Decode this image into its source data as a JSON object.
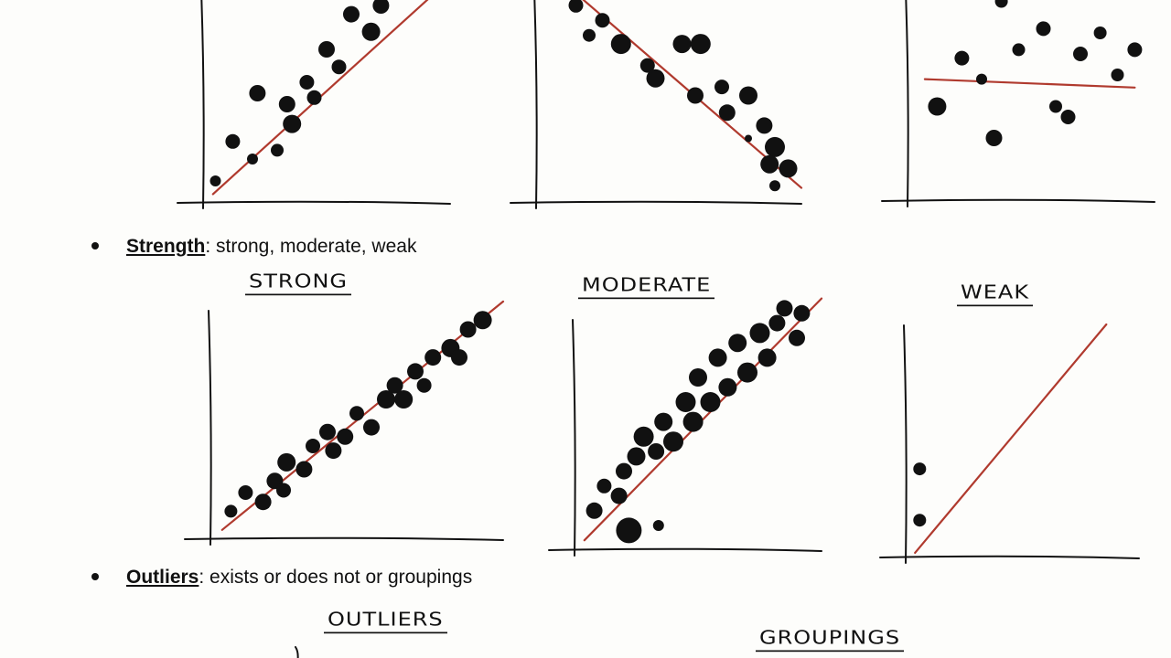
{
  "bullets": {
    "strength": {
      "term": "Strength",
      "rest": ":  strong, moderate, weak"
    },
    "outliers": {
      "term": "Outliers",
      "rest": ":  exists or does not or groupings"
    }
  },
  "titles": {
    "strong": "STRONG",
    "moderate": "MODERATE",
    "weak": "WEAK",
    "outliers": "OUTLIERS",
    "groupings": "GROUPINGS"
  },
  "colors": {
    "ink": "#111111",
    "trend": "#b03a2e",
    "paper": "#fdfdfb"
  },
  "chart_data": [
    {
      "type": "scatter",
      "name": "positive",
      "trend": "positive",
      "points": [
        [
          0.05,
          0.1,
          6
        ],
        [
          0.12,
          0.28,
          8
        ],
        [
          0.2,
          0.2,
          6
        ],
        [
          0.22,
          0.5,
          9
        ],
        [
          0.3,
          0.24,
          7
        ],
        [
          0.34,
          0.45,
          9
        ],
        [
          0.36,
          0.36,
          10
        ],
        [
          0.42,
          0.55,
          8
        ],
        [
          0.45,
          0.48,
          8
        ],
        [
          0.5,
          0.7,
          9
        ],
        [
          0.55,
          0.62,
          8
        ],
        [
          0.6,
          0.86,
          9
        ],
        [
          0.68,
          0.78,
          10
        ],
        [
          0.72,
          0.9,
          9
        ],
        [
          0.78,
          0.96,
          8
        ],
        [
          0.88,
          1.02,
          9
        ]
      ]
    },
    {
      "type": "scatter",
      "name": "negative",
      "trend": "negative",
      "points": [
        [
          0.05,
          1.02,
          8
        ],
        [
          0.15,
          0.92,
          8
        ],
        [
          0.2,
          0.78,
          7
        ],
        [
          0.25,
          0.85,
          8
        ],
        [
          0.32,
          0.74,
          11
        ],
        [
          0.42,
          0.64,
          8
        ],
        [
          0.45,
          0.58,
          10
        ],
        [
          0.55,
          0.74,
          10
        ],
        [
          0.62,
          0.74,
          11
        ],
        [
          0.6,
          0.5,
          9
        ],
        [
          0.72,
          0.42,
          9
        ],
        [
          0.7,
          0.54,
          8
        ],
        [
          0.8,
          0.5,
          10
        ],
        [
          0.86,
          0.36,
          9
        ],
        [
          0.9,
          0.26,
          11
        ],
        [
          0.88,
          0.18,
          10
        ],
        [
          0.95,
          0.16,
          10
        ],
        [
          0.9,
          0.08,
          6
        ],
        [
          0.8,
          0.3,
          4
        ]
      ]
    },
    {
      "type": "scatter",
      "name": "none",
      "trend": "flat",
      "points": [
        [
          0.12,
          0.45,
          10
        ],
        [
          0.22,
          0.68,
          8
        ],
        [
          0.3,
          0.58,
          6
        ],
        [
          0.38,
          0.95,
          7
        ],
        [
          0.45,
          0.72,
          7
        ],
        [
          0.55,
          0.82,
          8
        ],
        [
          0.6,
          0.45,
          7
        ],
        [
          0.65,
          0.4,
          8
        ],
        [
          0.7,
          0.7,
          8
        ],
        [
          0.78,
          0.8,
          7
        ],
        [
          0.85,
          0.6,
          7
        ],
        [
          0.92,
          0.72,
          8
        ],
        [
          0.35,
          0.3,
          9
        ]
      ]
    },
    {
      "type": "scatter",
      "name": "strong",
      "trend": "positive",
      "points": [
        [
          0.07,
          0.12,
          7
        ],
        [
          0.12,
          0.2,
          8
        ],
        [
          0.18,
          0.16,
          9
        ],
        [
          0.22,
          0.25,
          9
        ],
        [
          0.26,
          0.33,
          10
        ],
        [
          0.25,
          0.21,
          8
        ],
        [
          0.32,
          0.3,
          9
        ],
        [
          0.35,
          0.4,
          8
        ],
        [
          0.4,
          0.46,
          9
        ],
        [
          0.42,
          0.38,
          9
        ],
        [
          0.46,
          0.44,
          9
        ],
        [
          0.5,
          0.54,
          8
        ],
        [
          0.55,
          0.48,
          9
        ],
        [
          0.6,
          0.6,
          10
        ],
        [
          0.63,
          0.66,
          9
        ],
        [
          0.66,
          0.6,
          10
        ],
        [
          0.7,
          0.72,
          9
        ],
        [
          0.73,
          0.66,
          8
        ],
        [
          0.76,
          0.78,
          9
        ],
        [
          0.82,
          0.82,
          10
        ],
        [
          0.85,
          0.78,
          9
        ],
        [
          0.88,
          0.9,
          9
        ],
        [
          0.93,
          0.94,
          10
        ]
      ]
    },
    {
      "type": "scatter",
      "name": "moderate",
      "trend": "positive",
      "points": [
        [
          0.08,
          0.16,
          9
        ],
        [
          0.12,
          0.26,
          8
        ],
        [
          0.18,
          0.22,
          9
        ],
        [
          0.2,
          0.32,
          9
        ],
        [
          0.25,
          0.38,
          10
        ],
        [
          0.28,
          0.46,
          11
        ],
        [
          0.33,
          0.4,
          9
        ],
        [
          0.36,
          0.52,
          10
        ],
        [
          0.4,
          0.44,
          11
        ],
        [
          0.45,
          0.6,
          11
        ],
        [
          0.48,
          0.52,
          11
        ],
        [
          0.5,
          0.7,
          10
        ],
        [
          0.55,
          0.6,
          11
        ],
        [
          0.58,
          0.78,
          10
        ],
        [
          0.62,
          0.66,
          10
        ],
        [
          0.66,
          0.84,
          10
        ],
        [
          0.7,
          0.72,
          11
        ],
        [
          0.75,
          0.88,
          11
        ],
        [
          0.78,
          0.78,
          10
        ],
        [
          0.82,
          0.92,
          9
        ],
        [
          0.85,
          0.98,
          9
        ],
        [
          0.9,
          0.86,
          9
        ],
        [
          0.92,
          0.96,
          9
        ],
        [
          0.22,
          0.08,
          14
        ],
        [
          0.34,
          0.1,
          6
        ]
      ]
    },
    {
      "type": "scatter",
      "name": "weak",
      "trend": "steep",
      "points": [
        [
          0.06,
          0.38,
          7
        ],
        [
          0.06,
          0.16,
          7
        ]
      ]
    },
    {
      "type": "scatter",
      "name": "outliers",
      "partial": true,
      "points": []
    }
  ]
}
